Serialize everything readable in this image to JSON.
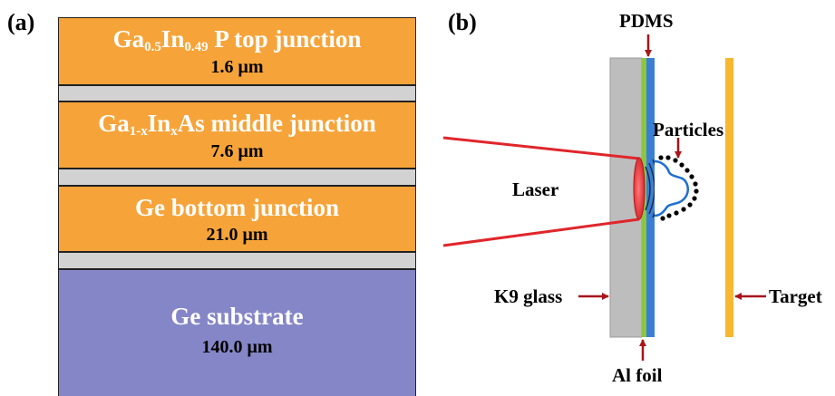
{
  "panel_a": {
    "label": "(a)",
    "layers": [
      {
        "name_parts": [
          "Ga",
          "0.5",
          "In",
          "0.49",
          "P top junction"
        ],
        "thickness": "1.6 μm"
      },
      {
        "name_parts": [
          "Ga",
          "1-x",
          "In",
          "x",
          "As middle junction"
        ],
        "thickness": "7.6 μm"
      },
      {
        "name": "Ge bottom junction",
        "thickness": "21.0 μm"
      },
      {
        "name": "Ge substrate",
        "thickness": "140.0 μm"
      }
    ]
  },
  "panel_b": {
    "label": "(b)",
    "labels": {
      "pdms": "PDMS",
      "particles": "Particles",
      "laser": "Laser",
      "k9_glass": "K9 glass",
      "target": "Target",
      "al_foil": "Al foil"
    }
  },
  "colors": {
    "junction_orange": "#f6a43a",
    "spacer_gray": "#d2d2d2",
    "substrate_purple": "#8586c7",
    "glass_gray": "#bdbdbd",
    "foil_green": "#8cc63f",
    "pdms_blue": "#3a7fd5",
    "target_yellow": "#f7b731",
    "laser_red": "#e0262b",
    "arrow_dark_red": "#a8151a",
    "bubble_blue": "#1f6fd1"
  }
}
